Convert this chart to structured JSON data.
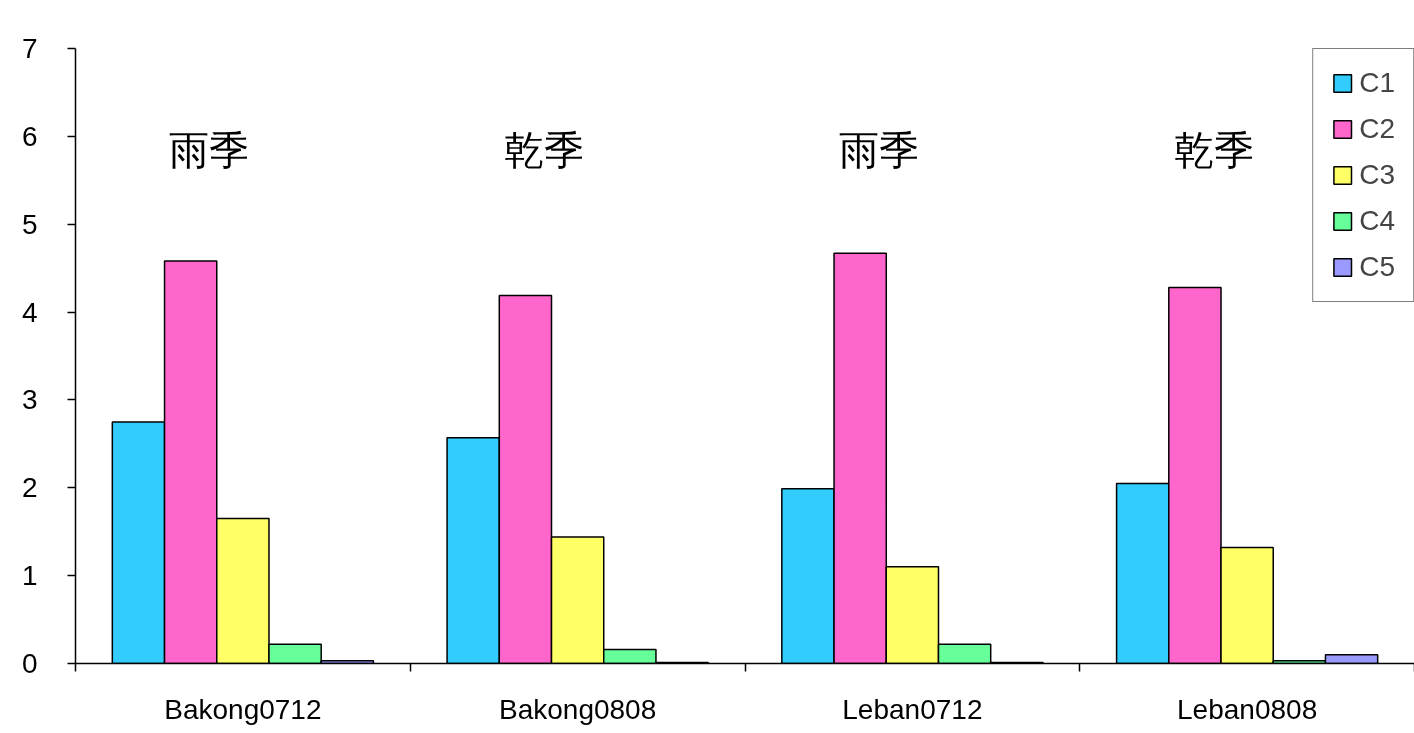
{
  "chart_data": {
    "type": "bar",
    "categories": [
      "Bakong0712",
      "Bakong0808",
      "Leban0712",
      "Leban0808"
    ],
    "series": [
      {
        "name": "C1",
        "color": "#33ccff",
        "values": [
          2.75,
          2.57,
          1.99,
          2.05
        ]
      },
      {
        "name": "C2",
        "color": "#ff66cc",
        "values": [
          4.58,
          4.19,
          4.67,
          4.28
        ]
      },
      {
        "name": "C3",
        "color": "#ffff66",
        "values": [
          1.65,
          1.44,
          1.1,
          1.32
        ]
      },
      {
        "name": "C4",
        "color": "#66ff99",
        "values": [
          0.22,
          0.16,
          0.22,
          0.03
        ]
      },
      {
        "name": "C5",
        "color": "#9999ff",
        "values": [
          0.03,
          0.01,
          0.01,
          0.1
        ]
      }
    ],
    "annotations": [
      "雨季",
      "乾季",
      "雨季",
      "乾季"
    ],
    "ylim": [
      0,
      7
    ],
    "yticks": [
      0,
      1,
      2,
      3,
      4,
      5,
      6,
      7
    ],
    "grid": false,
    "legend": "top right"
  }
}
